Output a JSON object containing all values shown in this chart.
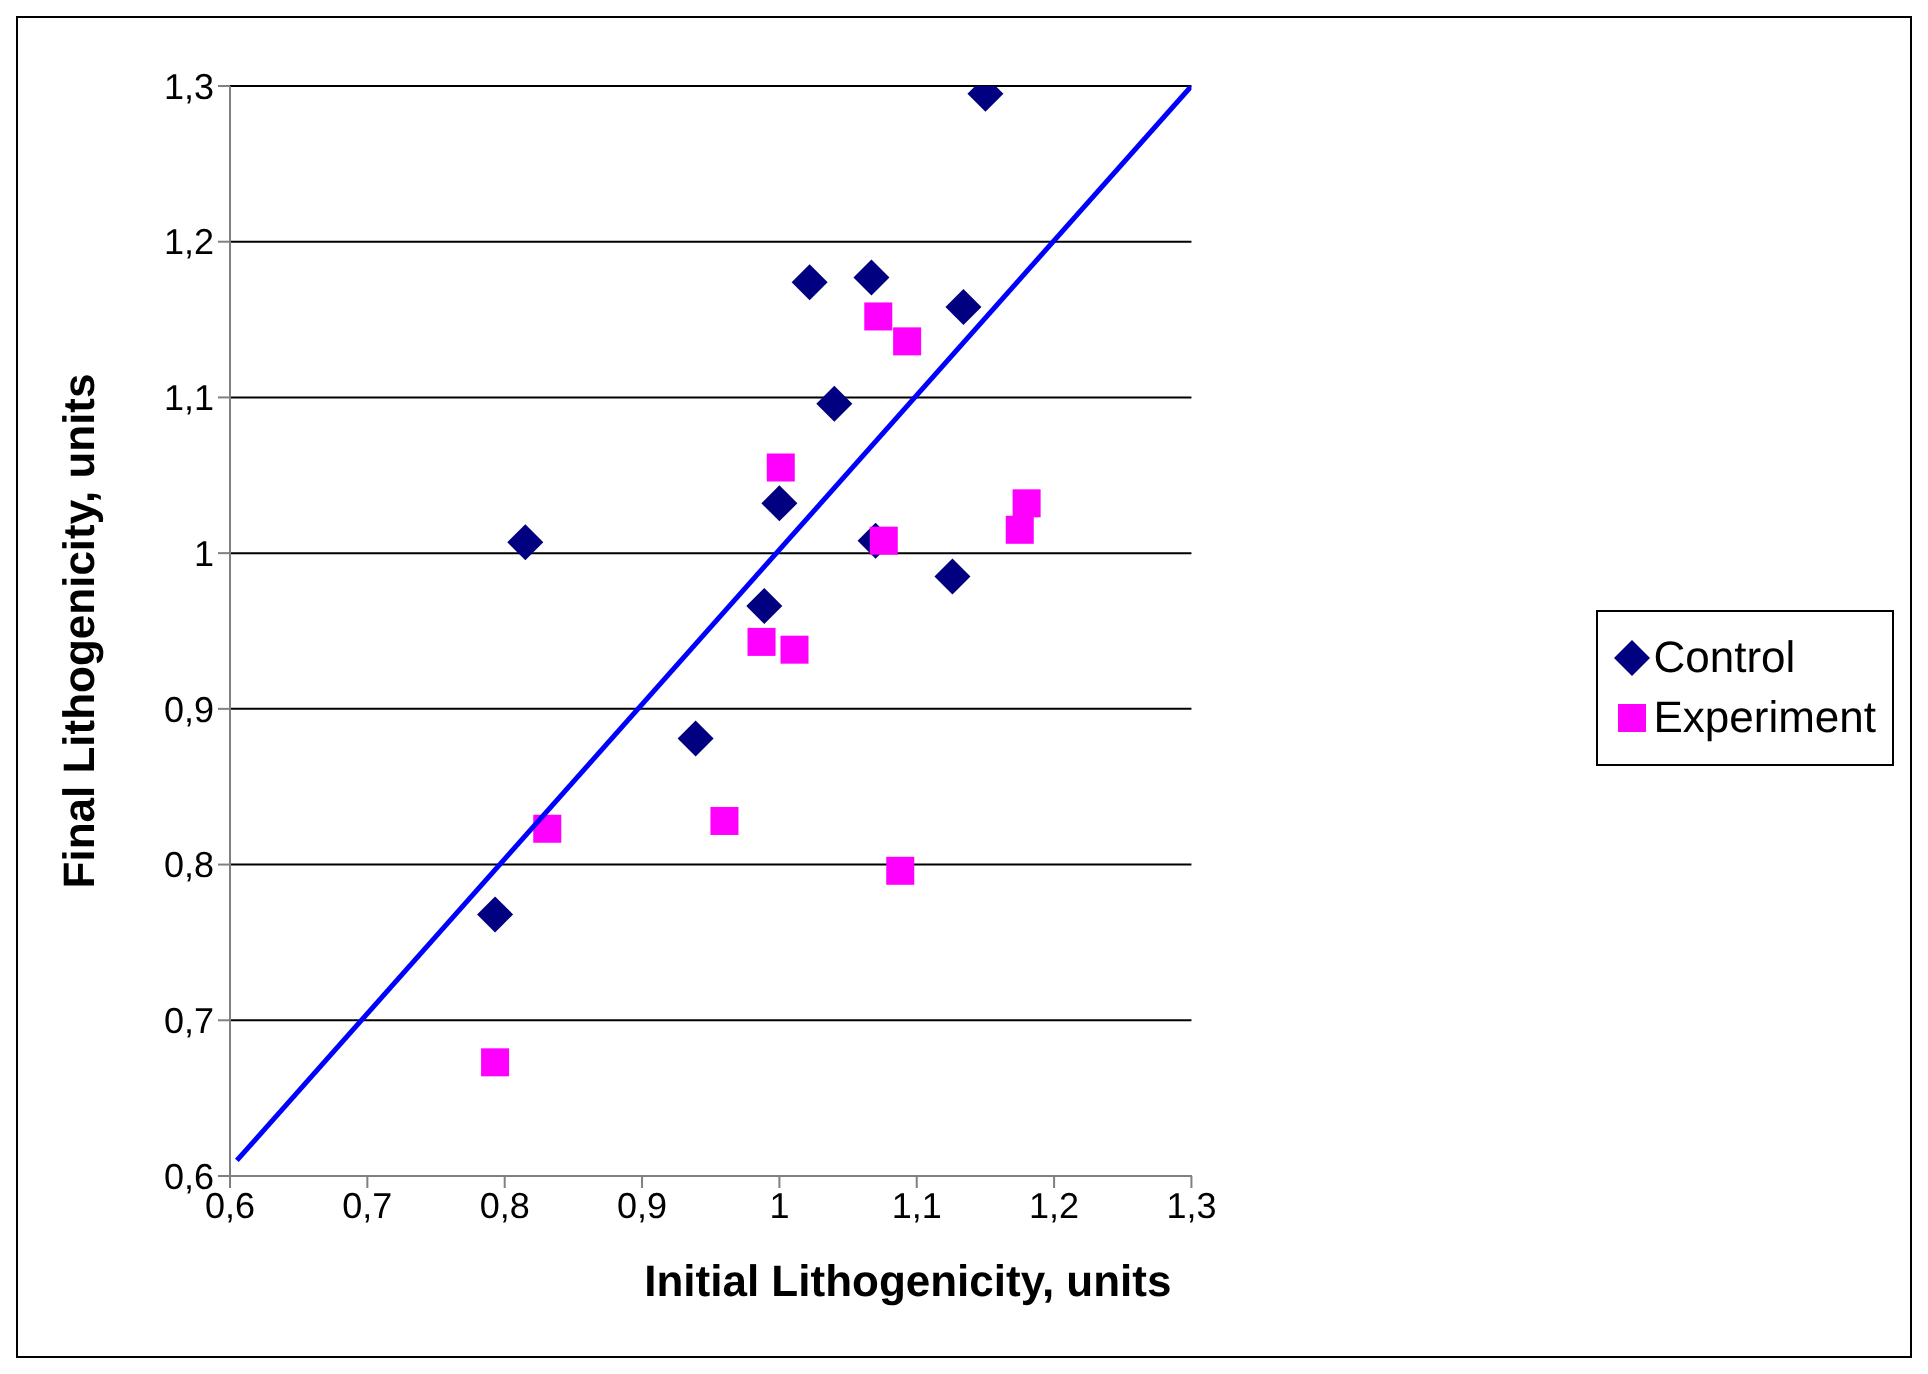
{
  "chart_data": {
    "type": "scatter",
    "xlabel": "Initial Lithogenicity, units",
    "ylabel": "Final Lithogenicity, units",
    "xlim": [
      0.6,
      1.3
    ],
    "ylim": [
      0.6,
      1.3
    ],
    "xticks": [
      {
        "value": 0.6,
        "label": "0,6"
      },
      {
        "value": 0.7,
        "label": "0,7"
      },
      {
        "value": 0.8,
        "label": "0,8"
      },
      {
        "value": 0.9,
        "label": "0,9"
      },
      {
        "value": 1,
        "label": "1"
      },
      {
        "value": 1.1,
        "label": "1,1"
      },
      {
        "value": 1.2,
        "label": "1,2"
      },
      {
        "value": 1.3,
        "label": "1,3"
      }
    ],
    "yticks": [
      {
        "value": 0.6,
        "label": "0,6"
      },
      {
        "value": 0.7,
        "label": "0,7"
      },
      {
        "value": 0.8,
        "label": "0,8"
      },
      {
        "value": 0.9,
        "label": "0,9"
      },
      {
        "value": 1,
        "label": "1"
      },
      {
        "value": 1.1,
        "label": "1,1"
      },
      {
        "value": 1.2,
        "label": "1,2"
      },
      {
        "value": 1.3,
        "label": "1,3"
      }
    ],
    "grid": "y",
    "legend": "right",
    "series": [
      {
        "name": "Control",
        "color": "#000080",
        "marker": "diamond",
        "x": [
          1.15,
          1.022,
          1.067,
          1.134,
          1.04,
          1.0,
          1.07,
          0.815,
          0.989,
          1.126,
          0.939,
          0.793
        ],
        "values": [
          1.295,
          1.174,
          1.177,
          1.158,
          1.096,
          1.032,
          1.008,
          1.007,
          0.966,
          0.985,
          0.881,
          0.768
        ]
      },
      {
        "name": "Experiment",
        "color": "#ff00ff",
        "marker": "square",
        "x": [
          1.072,
          1.093,
          1.001,
          1.076,
          1.18,
          1.175,
          0.987,
          1.011,
          0.831,
          0.96,
          1.088,
          0.793
        ],
        "values": [
          1.152,
          1.136,
          1.055,
          1.008,
          1.032,
          1.015,
          0.943,
          0.938,
          0.823,
          0.828,
          0.796,
          0.673
        ]
      },
      {
        "type": "line",
        "color": "#0000ff",
        "marker": "none",
        "x": [
          0.605,
          1.3
        ],
        "values": [
          0.61,
          1.3
        ]
      }
    ]
  }
}
